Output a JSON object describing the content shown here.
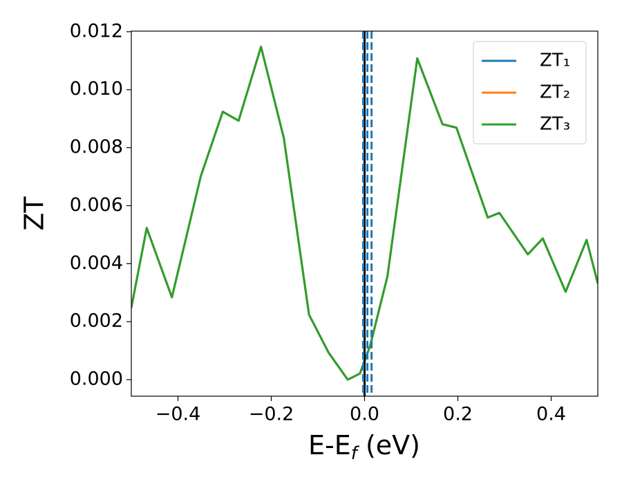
{
  "chart_data": {
    "type": "line",
    "ylabel": "ZT",
    "xlabel": [
      "E-E",
      "f",
      " (eV)"
    ],
    "x": [
      -0.5,
      -0.467,
      -0.413,
      -0.351,
      -0.304,
      -0.27,
      -0.222,
      -0.173,
      -0.119,
      -0.077,
      -0.036,
      -0.01,
      0.012,
      0.049,
      0.113,
      0.167,
      0.197,
      0.264,
      0.289,
      0.35,
      0.382,
      0.431,
      0.476,
      0.5
    ],
    "series": [
      {
        "name": "ZT₁",
        "color": "#1f77b4",
        "values": [
          0.00248,
          0.00523,
          0.00284,
          0.00702,
          0.00924,
          0.00893,
          0.01148,
          0.00833,
          0.00224,
          0.00093,
          0.0,
          0.00021,
          0.00117,
          0.00356,
          0.01108,
          0.00881,
          0.00869,
          0.00559,
          0.00575,
          0.00432,
          0.00487,
          0.00303,
          0.00482,
          0.00332
        ]
      },
      {
        "name": "ZT₂",
        "color": "#ff7f0e",
        "values": [
          0.00248,
          0.00523,
          0.00284,
          0.00702,
          0.00924,
          0.00893,
          0.01148,
          0.00833,
          0.00224,
          0.00093,
          0.0,
          0.00021,
          0.00117,
          0.00356,
          0.01108,
          0.00881,
          0.00869,
          0.00559,
          0.00575,
          0.00432,
          0.00487,
          0.00303,
          0.00482,
          0.00332
        ]
      },
      {
        "name": "ZT₃",
        "color": "#2ca02c",
        "values": [
          0.00248,
          0.00523,
          0.00284,
          0.00702,
          0.00924,
          0.00893,
          0.01148,
          0.00833,
          0.00224,
          0.00093,
          0.0,
          0.00021,
          0.00117,
          0.00356,
          0.01108,
          0.00881,
          0.00869,
          0.00559,
          0.00575,
          0.00432,
          0.00487,
          0.00303,
          0.00482,
          0.00332
        ]
      }
    ],
    "vlines": [
      {
        "x": 0.0,
        "color": "#000000",
        "dashed": false
      },
      {
        "x": -0.003,
        "color": "#1f77b4",
        "dashed": true
      },
      {
        "x": 0.006,
        "color": "#1f77b4",
        "dashed": true
      },
      {
        "x": 0.015,
        "color": "#1f77b4",
        "dashed": true
      }
    ],
    "xlim": [
      -0.5,
      0.5
    ],
    "ylim": [
      -0.00057,
      0.01202
    ],
    "xticks": [
      {
        "value": -0.4,
        "label": "−0.4"
      },
      {
        "value": -0.2,
        "label": "−0.2"
      },
      {
        "value": 0,
        "label": "0.0"
      },
      {
        "value": 0.2,
        "label": "0.2"
      },
      {
        "value": 0.4,
        "label": "0.4"
      }
    ],
    "yticks": [
      {
        "value": 0,
        "label": "0.000"
      },
      {
        "value": 0.002,
        "label": "0.002"
      },
      {
        "value": 0.004,
        "label": "0.004"
      },
      {
        "value": 0.006,
        "label": "0.006"
      },
      {
        "value": 0.008,
        "label": "0.008"
      },
      {
        "value": 0.01,
        "label": "0.010"
      },
      {
        "value": 0.012,
        "label": "0.012"
      }
    ],
    "grid": false,
    "legend": "upper right"
  }
}
